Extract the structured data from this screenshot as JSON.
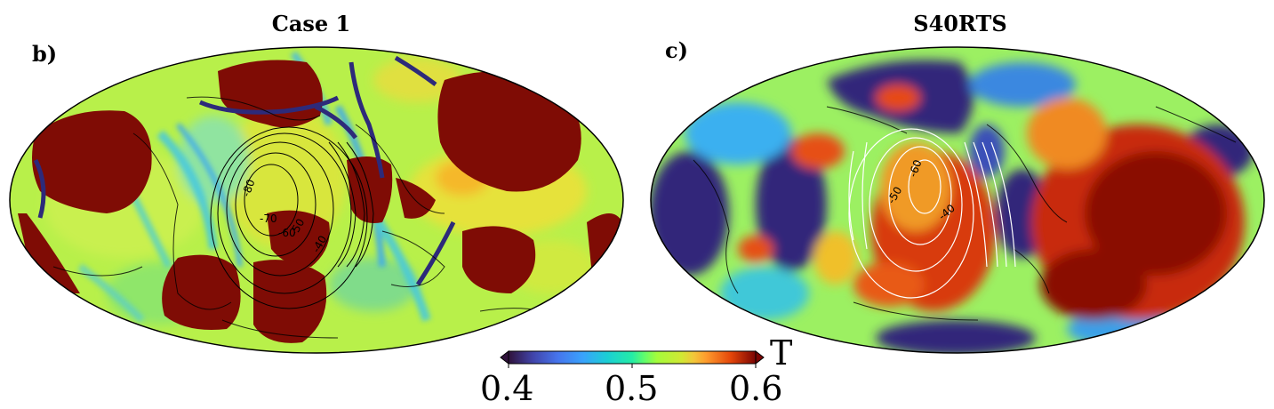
{
  "panels": [
    {
      "letter": "b)",
      "title": "Case 1",
      "contours": [
        "-80",
        "-70",
        "-60",
        "-50",
        "-40"
      ],
      "contour_color": "#000000"
    },
    {
      "letter": "c)",
      "title": "S40RTS",
      "contours": [
        "-60",
        "-50",
        "-40"
      ],
      "contour_color": "#ffffff"
    }
  ],
  "colorbar": {
    "unit": "T",
    "ticks": [
      "0.4",
      "0.5",
      "0.6"
    ],
    "min": 0.4,
    "max": 0.6,
    "colormap": "turbo"
  },
  "colors": {
    "deep_red": "#7f0c05",
    "red": "#c0280a",
    "orange": "#f0781e",
    "yellow": "#f5d72a",
    "yellow_green": "#c0f03c",
    "green": "#a8f05a",
    "cyan": "#28d7c8",
    "blue": "#2878f0",
    "navy": "#30287a"
  }
}
